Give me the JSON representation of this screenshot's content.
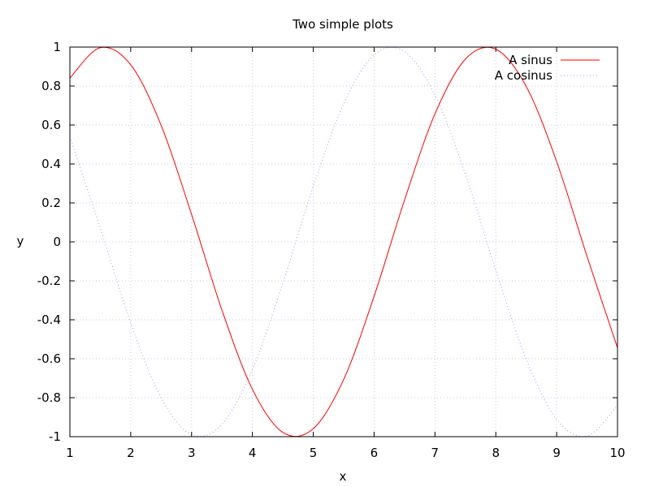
{
  "chart_data": {
    "type": "line",
    "title": "Two simple plots",
    "xlabel": "x",
    "ylabel": "y",
    "xlim": [
      1,
      10
    ],
    "ylim": [
      -1,
      1
    ],
    "xticks": [
      1,
      2,
      3,
      4,
      5,
      6,
      7,
      8,
      9,
      10
    ],
    "yticks": [
      -1,
      -0.8,
      -0.6,
      -0.4,
      -0.2,
      0,
      0.2,
      0.4,
      0.6,
      0.8,
      1
    ],
    "xtick_labels": [
      "1",
      "2",
      "3",
      "4",
      "5",
      "6",
      "7",
      "8",
      "9",
      "10"
    ],
    "ytick_labels": [
      "-1",
      "-0.8",
      "-0.6",
      "-0.4",
      "-0.2",
      "0",
      "0.2",
      "0.4",
      "0.6",
      "0.8",
      "1"
    ],
    "grid": true,
    "legend_position": "top-right",
    "series": [
      {
        "name": "A sinus",
        "color": "#ff0000",
        "style": "solid",
        "x": [
          1.0,
          1.5,
          2.0,
          2.5,
          3.0,
          3.5,
          4.0,
          4.5,
          5.0,
          5.5,
          6.0,
          6.5,
          7.0,
          7.5,
          8.0,
          8.5,
          9.0,
          9.5,
          10.0
        ],
        "values": [
          0.841,
          0.997,
          0.909,
          0.598,
          0.141,
          -0.351,
          -0.757,
          -0.978,
          -0.959,
          -0.706,
          -0.279,
          0.215,
          0.657,
          0.938,
          0.989,
          0.798,
          0.412,
          -0.075,
          -0.544
        ]
      },
      {
        "name": "A cosinus",
        "color": "#9999ff",
        "style": "dotted",
        "x": [
          1.0,
          1.5,
          2.0,
          2.5,
          3.0,
          3.5,
          4.0,
          4.5,
          5.0,
          5.5,
          6.0,
          6.5,
          7.0,
          7.5,
          8.0,
          8.5,
          9.0,
          9.5,
          10.0
        ],
        "values": [
          0.54,
          0.071,
          -0.416,
          -0.801,
          -0.99,
          -0.936,
          -0.654,
          -0.211,
          0.284,
          0.709,
          0.96,
          0.977,
          0.754,
          0.347,
          -0.146,
          -0.602,
          -0.911,
          -0.997,
          -0.839
        ]
      }
    ]
  }
}
